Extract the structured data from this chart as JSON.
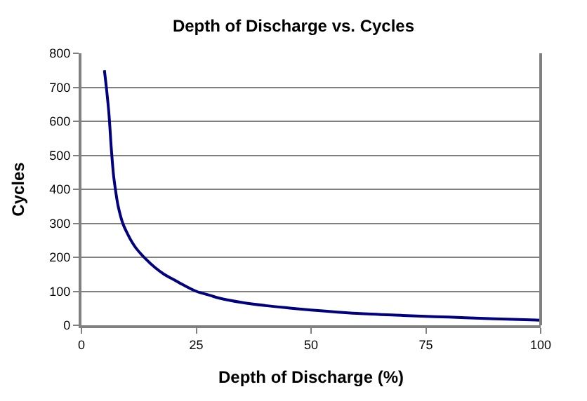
{
  "chart_data": {
    "type": "line",
    "title": "Depth of Discharge vs. Cycles",
    "xlabel": "Depth of Discharge (%)",
    "ylabel": "Cycles",
    "x": [
      5,
      5.5,
      6,
      6.5,
      7,
      7.5,
      8,
      9,
      10,
      11,
      12,
      14,
      16,
      18,
      20,
      22,
      25,
      28,
      30,
      35,
      40,
      45,
      50,
      60,
      70,
      80,
      90,
      100
    ],
    "series": [
      {
        "color": "#000080",
        "values": [
          750,
          690,
          620,
          520,
          440,
          390,
          350,
          300,
          270,
          245,
          225,
          195,
          170,
          150,
          135,
          120,
          100,
          88,
          80,
          67,
          58,
          51,
          45,
          35,
          29,
          24,
          19,
          15
        ]
      }
    ],
    "xlim": [
      0,
      100
    ],
    "xticks": [
      0,
      25,
      50,
      75,
      100
    ],
    "ylim": [
      0,
      800
    ],
    "yticks": [
      0,
      100,
      200,
      300,
      400,
      500,
      600,
      700,
      800
    ],
    "grid": "y",
    "legend": false,
    "marker": "none",
    "line_style": "solid"
  }
}
